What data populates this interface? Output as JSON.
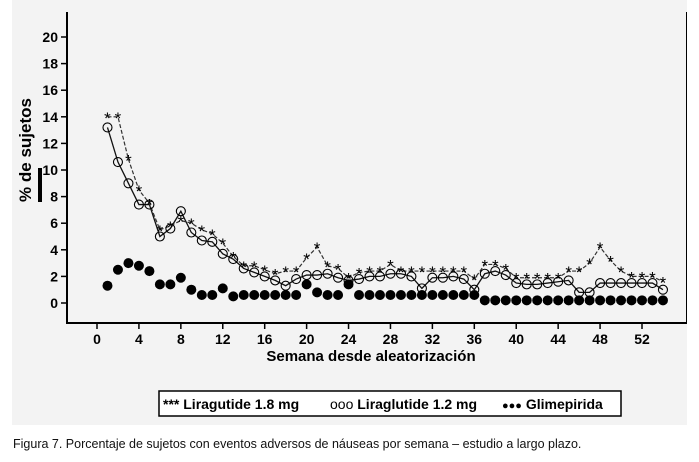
{
  "chart_data": {
    "type": "line",
    "title": "",
    "xlabel": "Semana desde aleatorización",
    "ylabel": "% de sujetos",
    "xlim": [
      -2.5,
      54.5
    ],
    "ylim": [
      -1.5,
      21
    ],
    "x_ticks": [
      0,
      4,
      8,
      12,
      16,
      20,
      24,
      28,
      32,
      36,
      40,
      44,
      48,
      52
    ],
    "y_ticks": [
      0,
      2,
      4,
      6,
      8,
      10,
      12,
      14,
      16,
      18,
      20
    ],
    "grid": false,
    "legend_position": "bottom",
    "series": [
      {
        "name": "Liragutide 1.8 mg",
        "legend_marker": "***",
        "marker": "asterisk",
        "line": "dashed",
        "points": [
          [
            1,
            14
          ],
          [
            2,
            14
          ],
          [
            3,
            10.8
          ],
          [
            4,
            8.5
          ],
          [
            5,
            7.5
          ],
          [
            6,
            5.5
          ],
          [
            7,
            5.8
          ],
          [
            8,
            6.2
          ],
          [
            9,
            6
          ],
          [
            10,
            5.5
          ],
          [
            11,
            5.2
          ],
          [
            12,
            4.5
          ],
          [
            13,
            3.5
          ],
          [
            14,
            2.8
          ],
          [
            15,
            2.8
          ],
          [
            16,
            2.5
          ],
          [
            17,
            2.2
          ],
          [
            18,
            2.4
          ],
          [
            19,
            2.4
          ],
          [
            20,
            3.4
          ],
          [
            21,
            4.2
          ],
          [
            22,
            2.8
          ],
          [
            23,
            2.6
          ],
          [
            24,
            1.9
          ],
          [
            25,
            2.3
          ],
          [
            26,
            2.4
          ],
          [
            27,
            2.4
          ],
          [
            28,
            2.9
          ],
          [
            29,
            2.4
          ],
          [
            30,
            2.4
          ],
          [
            31,
            2.4
          ],
          [
            32,
            2.4
          ],
          [
            33,
            2.4
          ],
          [
            34,
            2.4
          ],
          [
            35,
            2.4
          ],
          [
            36,
            1.8
          ],
          [
            37,
            2.9
          ],
          [
            38,
            2.9
          ],
          [
            39,
            2.6
          ],
          [
            40,
            1.9
          ],
          [
            41,
            1.9
          ],
          [
            42,
            1.9
          ],
          [
            43,
            1.9
          ],
          [
            44,
            1.9
          ],
          [
            45,
            2.4
          ],
          [
            46,
            2.4
          ],
          [
            47,
            3
          ],
          [
            48,
            4.2
          ],
          [
            49,
            3.2
          ],
          [
            50,
            2.4
          ],
          [
            51,
            2
          ],
          [
            52,
            2
          ],
          [
            53,
            2
          ],
          [
            54,
            1.6
          ]
        ]
      },
      {
        "name": "Liraglutide 1.2 mg",
        "legend_marker": "ooo",
        "marker": "open-circle",
        "line": "solid",
        "points": [
          [
            1,
            13.2
          ],
          [
            2,
            10.6
          ],
          [
            3,
            9
          ],
          [
            4,
            7.4
          ],
          [
            5,
            7.4
          ],
          [
            6,
            5
          ],
          [
            7,
            5.6
          ],
          [
            8,
            6.9
          ],
          [
            9,
            5.3
          ],
          [
            10,
            4.7
          ],
          [
            11,
            4.6
          ],
          [
            12,
            3.7
          ],
          [
            13,
            3.3
          ],
          [
            14,
            2.6
          ],
          [
            15,
            2.3
          ],
          [
            16,
            2
          ],
          [
            17,
            1.7
          ],
          [
            18,
            1.3
          ],
          [
            19,
            1.8
          ],
          [
            20,
            2.1
          ],
          [
            21,
            2.1
          ],
          [
            22,
            2.2
          ],
          [
            23,
            1.9
          ],
          [
            24,
            1.7
          ],
          [
            25,
            1.8
          ],
          [
            26,
            2
          ],
          [
            27,
            2
          ],
          [
            28,
            2.2
          ],
          [
            29,
            2.2
          ],
          [
            30,
            2
          ],
          [
            31,
            1.1
          ],
          [
            32,
            1.9
          ],
          [
            33,
            1.9
          ],
          [
            34,
            2
          ],
          [
            35,
            1.8
          ],
          [
            36,
            1
          ],
          [
            37,
            2.2
          ],
          [
            38,
            2.4
          ],
          [
            39,
            2.1
          ],
          [
            40,
            1.5
          ],
          [
            41,
            1.4
          ],
          [
            42,
            1.4
          ],
          [
            43,
            1.5
          ],
          [
            44,
            1.6
          ],
          [
            45,
            1.7
          ],
          [
            46,
            0.8
          ],
          [
            47,
            0.8
          ],
          [
            48,
            1.5
          ],
          [
            49,
            1.5
          ],
          [
            50,
            1.5
          ],
          [
            51,
            1.5
          ],
          [
            52,
            1.5
          ],
          [
            53,
            1.5
          ],
          [
            54,
            1
          ]
        ]
      },
      {
        "name": "Glimepirida",
        "legend_marker": "●●●",
        "marker": "filled-circle",
        "line": "none",
        "points": [
          [
            1,
            1.3
          ],
          [
            2,
            2.5
          ],
          [
            3,
            3
          ],
          [
            4,
            2.8
          ],
          [
            5,
            2.4
          ],
          [
            6,
            1.4
          ],
          [
            7,
            1.4
          ],
          [
            8,
            1.9
          ],
          [
            9,
            1
          ],
          [
            10,
            0.6
          ],
          [
            11,
            0.6
          ],
          [
            12,
            1.1
          ],
          [
            13,
            0.5
          ],
          [
            14,
            0.6
          ],
          [
            15,
            0.6
          ],
          [
            16,
            0.6
          ],
          [
            17,
            0.6
          ],
          [
            18,
            0.6
          ],
          [
            19,
            0.6
          ],
          [
            20,
            1.4
          ],
          [
            21,
            0.8
          ],
          [
            22,
            0.6
          ],
          [
            23,
            0.6
          ],
          [
            24,
            1.4
          ],
          [
            25,
            0.6
          ],
          [
            26,
            0.6
          ],
          [
            27,
            0.6
          ],
          [
            28,
            0.6
          ],
          [
            29,
            0.6
          ],
          [
            30,
            0.6
          ],
          [
            31,
            0.6
          ],
          [
            32,
            0.6
          ],
          [
            33,
            0.6
          ],
          [
            34,
            0.6
          ],
          [
            35,
            0.6
          ],
          [
            36,
            0.6
          ],
          [
            37,
            0.2
          ],
          [
            38,
            0.2
          ],
          [
            39,
            0.2
          ],
          [
            40,
            0.2
          ],
          [
            41,
            0.2
          ],
          [
            42,
            0.2
          ],
          [
            43,
            0.2
          ],
          [
            44,
            0.2
          ],
          [
            45,
            0.2
          ],
          [
            46,
            0.2
          ],
          [
            47,
            0.2
          ],
          [
            48,
            0.2
          ],
          [
            49,
            0.2
          ],
          [
            50,
            0.2
          ],
          [
            51,
            0.2
          ],
          [
            52,
            0.2
          ],
          [
            53,
            0.2
          ],
          [
            54,
            0.2
          ]
        ]
      }
    ]
  },
  "caption": "Figura 7. Porcentaje de sujetos con eventos adversos de náuseas por semana – estudio a largo plazo."
}
